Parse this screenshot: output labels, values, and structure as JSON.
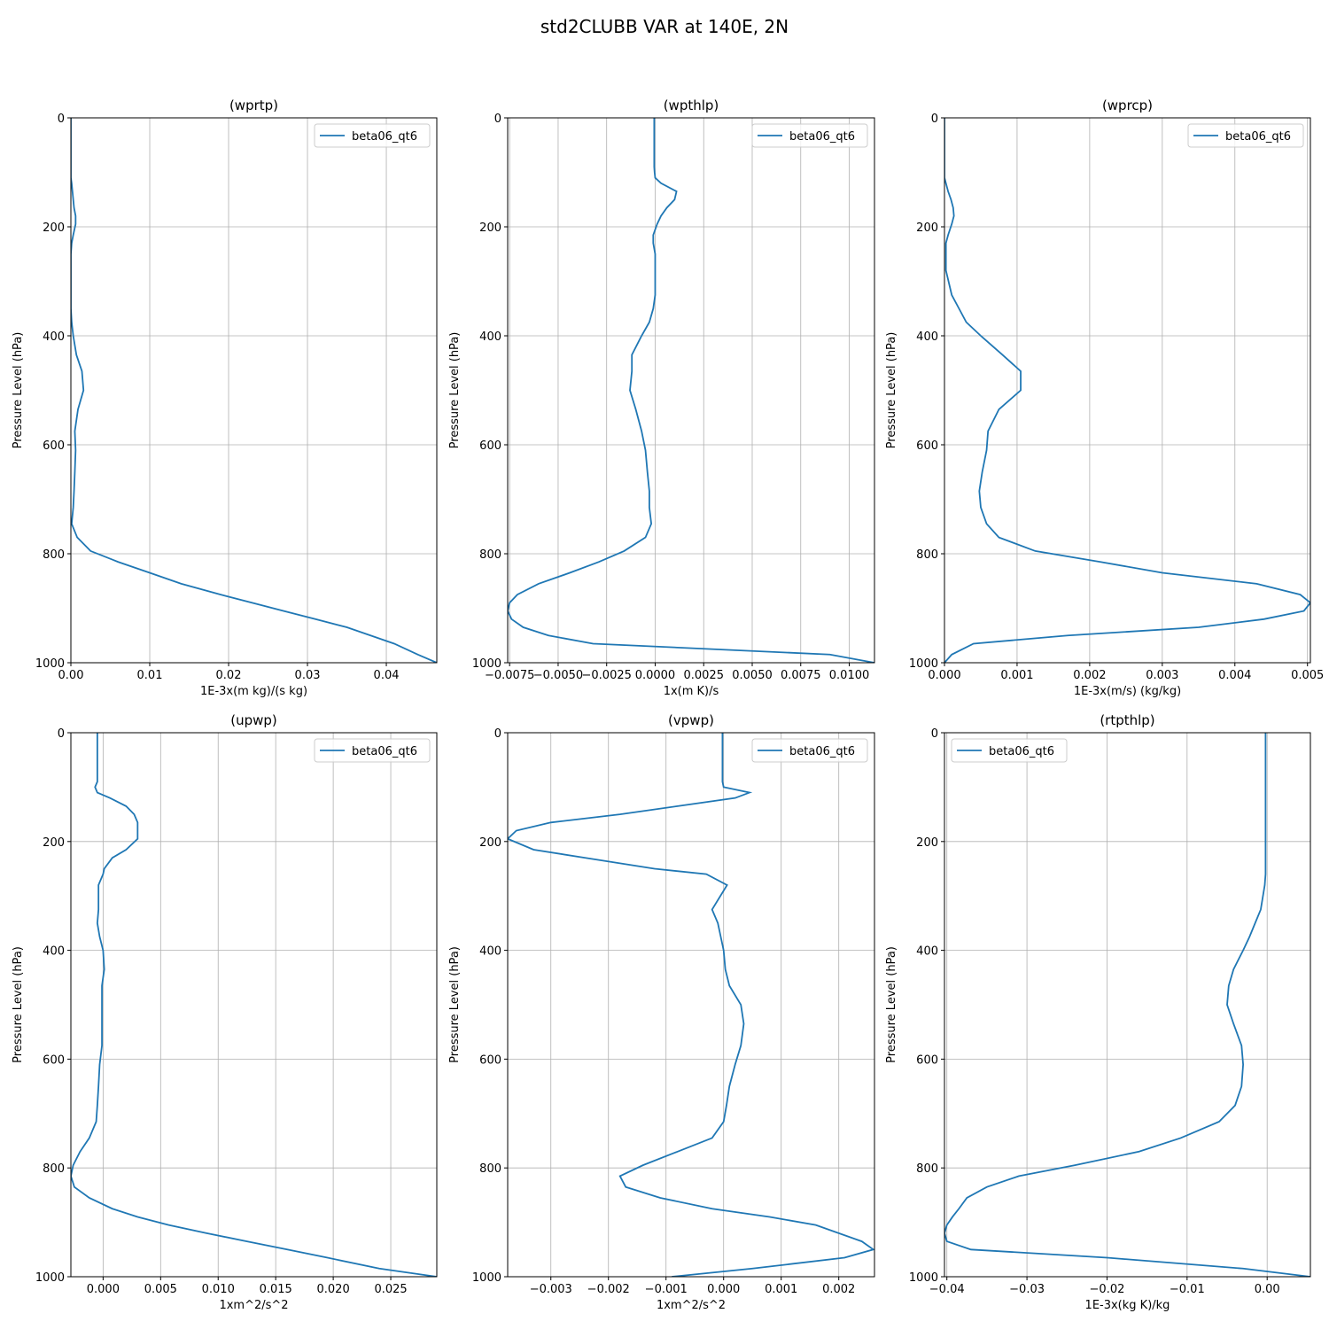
{
  "title": "std2CLUBB VAR at 140E, 2N",
  "chart_data": [
    {
      "type": "line",
      "title": "(wprtp)",
      "xlabel": "1E-3x(m kg)/(s kg)",
      "ylabel": "Pressure Level (hPa)",
      "xlim": [
        0,
        0.0464
      ],
      "xticks": [
        {
          "value": 0,
          "label": "0.00"
        },
        {
          "value": 0.01,
          "label": "0.01"
        },
        {
          "value": 0.02,
          "label": "0.02"
        },
        {
          "value": 0.03,
          "label": "0.03"
        },
        {
          "value": 0.04,
          "label": "0.04"
        }
      ],
      "ylim": [
        1000,
        0
      ],
      "yticks": [
        0,
        200,
        400,
        600,
        800,
        1000
      ],
      "grid": true,
      "legend": "upper right",
      "y": [
        0,
        90,
        100,
        110,
        120,
        135,
        150,
        165,
        180,
        195,
        215,
        230,
        250,
        260,
        280,
        325,
        350,
        375,
        400,
        435,
        465,
        500,
        535,
        575,
        610,
        650,
        685,
        715,
        745,
        770,
        795,
        815,
        835,
        855,
        875,
        890,
        905,
        920,
        935,
        950,
        965,
        985,
        1000
      ],
      "series": [
        {
          "name": "beta06_qt6",
          "color": "#1f77b4",
          "values": [
            0,
            0,
            0,
            0,
            0.0001,
            0.0002,
            0.0003,
            0.0004,
            0.0006,
            0.0006,
            0.0003,
            0.0001,
            0,
            0,
            0,
            0,
            0,
            0.0001,
            0.0003,
            0.0007,
            0.0014,
            0.0016,
            0.0009,
            0.0005,
            0.0006,
            0.0005,
            0.0004,
            0.0003,
            0.0001,
            0.0008,
            0.0025,
            0.006,
            0.01,
            0.014,
            0.019,
            0.023,
            0.027,
            0.031,
            0.035,
            0.038,
            0.041,
            0.044,
            0.0464
          ]
        }
      ]
    },
    {
      "type": "line",
      "title": "(wpthlp)",
      "xlabel": "1x(m K)/s",
      "ylabel": "Pressure Level (hPa)",
      "xlim": [
        -0.0076,
        0.0113
      ],
      "xticks": [
        {
          "value": -0.0075,
          "label": "−0.0075"
        },
        {
          "value": -0.005,
          "label": "−0.0050"
        },
        {
          "value": -0.0025,
          "label": "−0.0025"
        },
        {
          "value": 0,
          "label": "0.0000"
        },
        {
          "value": 0.0025,
          "label": "0.0025"
        },
        {
          "value": 0.005,
          "label": "0.0050"
        },
        {
          "value": 0.0075,
          "label": "0.0075"
        },
        {
          "value": 0.01,
          "label": "0.0100"
        }
      ],
      "ylim": [
        1000,
        0
      ],
      "yticks": [
        0,
        200,
        400,
        600,
        800,
        1000
      ],
      "grid": true,
      "legend": "upper right",
      "y": [
        0,
        90,
        100,
        110,
        120,
        135,
        150,
        165,
        180,
        195,
        215,
        230,
        250,
        260,
        280,
        325,
        350,
        375,
        400,
        435,
        465,
        500,
        535,
        575,
        610,
        650,
        685,
        715,
        745,
        770,
        795,
        815,
        835,
        855,
        875,
        890,
        905,
        920,
        935,
        950,
        965,
        985,
        1000
      ],
      "series": [
        {
          "name": "beta06_qt6",
          "color": "#1f77b4",
          "values": [
            -5e-05,
            -5e-05,
            -3e-05,
            0,
            0.0003,
            0.0011,
            0.001,
            0.0006,
            0.0003,
            0.0001,
            -0.0001,
            -0.0001,
            0,
            0,
            0,
            0,
            -0.0001,
            -0.0003,
            -0.0007,
            -0.0012,
            -0.0012,
            -0.0013,
            -0.001,
            -0.0007,
            -0.0005,
            -0.0004,
            -0.0003,
            -0.0003,
            -0.0002,
            -0.0005,
            -0.0016,
            -0.0029,
            -0.0044,
            -0.006,
            -0.0071,
            -0.0075,
            -0.0076,
            -0.0074,
            -0.0068,
            -0.0055,
            -0.0032,
            0.009,
            0.0113
          ]
        }
      ]
    },
    {
      "type": "line",
      "title": "(wprcp)",
      "xlabel": "1E-3x(m/s) (kg/kg)",
      "ylabel": "Pressure Level (hPa)",
      "xlim": [
        0,
        0.00504
      ],
      "xticks": [
        {
          "value": 0,
          "label": "0.000"
        },
        {
          "value": 0.001,
          "label": "0.001"
        },
        {
          "value": 0.002,
          "label": "0.002"
        },
        {
          "value": 0.003,
          "label": "0.003"
        },
        {
          "value": 0.004,
          "label": "0.004"
        },
        {
          "value": 0.005,
          "label": "0.005"
        }
      ],
      "ylim": [
        1000,
        0
      ],
      "yticks": [
        0,
        200,
        400,
        600,
        800,
        1000
      ],
      "grid": true,
      "legend": "upper right",
      "y": [
        0,
        90,
        100,
        110,
        120,
        135,
        150,
        165,
        180,
        195,
        215,
        230,
        250,
        260,
        280,
        325,
        350,
        375,
        400,
        435,
        465,
        500,
        535,
        575,
        610,
        650,
        685,
        715,
        745,
        770,
        795,
        815,
        835,
        855,
        875,
        890,
        905,
        920,
        935,
        950,
        965,
        985,
        1000
      ],
      "series": [
        {
          "name": "beta06_qt6",
          "color": "#1f77b4",
          "values": [
            0,
            0,
            0,
            0,
            2e-05,
            5e-05,
            9e-05,
            0.00012,
            0.00013,
            0.0001,
            5e-05,
            2e-05,
            2e-05,
            2e-05,
            2e-05,
            0.0001,
            0.0002,
            0.0003,
            0.0005,
            0.0008,
            0.00105,
            0.00105,
            0.00075,
            0.0006,
            0.00058,
            0.00052,
            0.00048,
            0.0005,
            0.00058,
            0.00075,
            0.00125,
            0.00215,
            0.003,
            0.0043,
            0.0049,
            0.00504,
            0.00495,
            0.0044,
            0.0035,
            0.0017,
            0.0004,
            0.0001,
            0
          ]
        }
      ]
    },
    {
      "type": "line",
      "title": "(upwp)",
      "xlabel": "1xm^2/s^2",
      "ylabel": "Pressure Level (hPa)",
      "xlim": [
        -0.0028,
        0.029
      ],
      "xticks": [
        {
          "value": 0,
          "label": "0.000"
        },
        {
          "value": 0.005,
          "label": "0.005"
        },
        {
          "value": 0.01,
          "label": "0.010"
        },
        {
          "value": 0.015,
          "label": "0.015"
        },
        {
          "value": 0.02,
          "label": "0.020"
        },
        {
          "value": 0.025,
          "label": "0.025"
        }
      ],
      "ylim": [
        1000,
        0
      ],
      "yticks": [
        0,
        200,
        400,
        600,
        800,
        1000
      ],
      "grid": true,
      "legend": "upper right",
      "y": [
        0,
        90,
        100,
        110,
        120,
        135,
        150,
        165,
        180,
        195,
        215,
        230,
        250,
        260,
        280,
        325,
        350,
        375,
        400,
        435,
        465,
        500,
        535,
        575,
        610,
        650,
        685,
        715,
        745,
        770,
        795,
        815,
        835,
        855,
        875,
        890,
        905,
        920,
        935,
        950,
        965,
        985,
        1000
      ],
      "series": [
        {
          "name": "beta06_qt6",
          "color": "#1f77b4",
          "values": [
            -0.0005,
            -0.0005,
            -0.0007,
            -0.0005,
            0.0006,
            0.002,
            0.0027,
            0.003,
            0.003,
            0.003,
            0.002,
            0.0008,
            0.0001,
            0,
            -0.0004,
            -0.0004,
            -0.0005,
            -0.0003,
            0,
            0.0001,
            -0.0001,
            -0.0001,
            -0.0001,
            -0.0001,
            -0.0003,
            -0.0004,
            -0.0005,
            -0.0006,
            -0.0012,
            -0.002,
            -0.0026,
            -0.0028,
            -0.0025,
            -0.0012,
            0.0008,
            0.003,
            0.0057,
            0.009,
            0.0125,
            0.016,
            0.0195,
            0.024,
            0.029
          ]
        }
      ]
    },
    {
      "type": "line",
      "title": "(vpwp)",
      "xlabel": "1xm^2/s^2",
      "ylabel": "Pressure Level (hPa)",
      "xlim": [
        -0.00375,
        0.00262
      ],
      "xticks": [
        {
          "value": -0.003,
          "label": "−0.003"
        },
        {
          "value": -0.002,
          "label": "−0.002"
        },
        {
          "value": -0.001,
          "label": "−0.001"
        },
        {
          "value": 0,
          "label": "0.000"
        },
        {
          "value": 0.001,
          "label": "0.001"
        },
        {
          "value": 0.002,
          "label": "0.002"
        }
      ],
      "ylim": [
        1000,
        0
      ],
      "yticks": [
        0,
        200,
        400,
        600,
        800,
        1000
      ],
      "grid": true,
      "legend": "upper right",
      "y": [
        0,
        90,
        100,
        110,
        120,
        135,
        150,
        165,
        180,
        195,
        215,
        230,
        250,
        260,
        280,
        325,
        350,
        375,
        400,
        435,
        465,
        500,
        535,
        575,
        610,
        650,
        685,
        715,
        745,
        770,
        795,
        815,
        835,
        855,
        875,
        890,
        905,
        920,
        935,
        950,
        965,
        985,
        1000
      ],
      "series": [
        {
          "name": "beta06_qt6",
          "color": "#1f77b4",
          "values": [
            -2e-05,
            -2e-05,
            0,
            0.00045,
            0.0002,
            -0.0008,
            -0.0018,
            -0.003,
            -0.0036,
            -0.00375,
            -0.0033,
            -0.0024,
            -0.0012,
            -0.0003,
            6e-05,
            -0.0002,
            -0.0001,
            -5e-05,
            0,
            3e-05,
            0.0001,
            0.0003,
            0.00035,
            0.0003,
            0.0002,
            0.0001,
            5e-05,
            0,
            -0.0002,
            -0.0008,
            -0.0014,
            -0.0018,
            -0.0017,
            -0.0011,
            -0.0002,
            0.0008,
            0.0016,
            0.002,
            0.0024,
            0.0026,
            0.0021,
            0.0005,
            -0.0009
          ]
        }
      ]
    },
    {
      "type": "line",
      "title": "(rtpthlp)",
      "xlabel": "1E-3x(kg K)/kg",
      "ylabel": "Pressure Level (hPa)",
      "xlim": [
        -0.0403,
        0.0054
      ],
      "xticks": [
        {
          "value": -0.04,
          "label": "−0.04"
        },
        {
          "value": -0.03,
          "label": "−0.03"
        },
        {
          "value": -0.02,
          "label": "−0.02"
        },
        {
          "value": -0.01,
          "label": "−0.01"
        },
        {
          "value": 0,
          "label": "0.00"
        }
      ],
      "ylim": [
        1000,
        0
      ],
      "yticks": [
        0,
        200,
        400,
        600,
        800,
        1000
      ],
      "grid": true,
      "legend": "upper left",
      "y": [
        0,
        90,
        100,
        110,
        120,
        135,
        150,
        165,
        180,
        195,
        215,
        230,
        250,
        260,
        280,
        325,
        350,
        375,
        400,
        435,
        465,
        500,
        535,
        575,
        610,
        650,
        685,
        715,
        745,
        770,
        795,
        815,
        835,
        855,
        875,
        890,
        905,
        920,
        935,
        950,
        965,
        985,
        1000
      ],
      "series": [
        {
          "name": "beta06_qt6",
          "color": "#1f77b4",
          "values": [
            -0.0002,
            -0.0002,
            -0.0002,
            -0.0002,
            -0.0002,
            -0.0002,
            -0.0002,
            -0.0002,
            -0.0002,
            -0.0002,
            -0.0002,
            -0.0002,
            -0.0002,
            -0.0002,
            -0.0003,
            -0.0008,
            -0.0015,
            -0.0022,
            -0.003,
            -0.0042,
            -0.0048,
            -0.005,
            -0.0042,
            -0.0032,
            -0.003,
            -0.0032,
            -0.004,
            -0.006,
            -0.0108,
            -0.016,
            -0.024,
            -0.031,
            -0.035,
            -0.0375,
            -0.0385,
            -0.0393,
            -0.04,
            -0.0403,
            -0.04,
            -0.037,
            -0.02,
            -0.003,
            0.0054
          ]
        }
      ]
    }
  ]
}
